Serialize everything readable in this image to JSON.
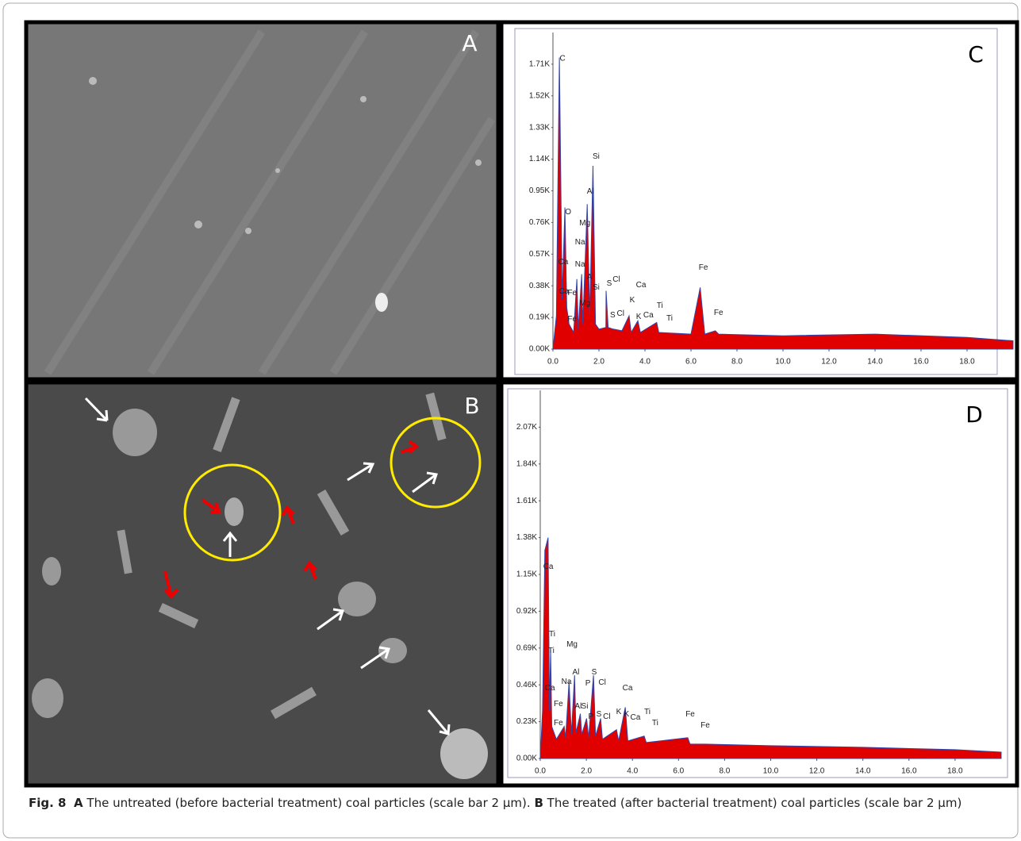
{
  "panels": {
    "a": "A",
    "b": "B"
  },
  "charts": [
    {
      "type": "area",
      "panel_label": "C",
      "color": "#e00000",
      "xlim": [
        0,
        20
      ],
      "ylim": [
        0,
        1900
      ],
      "xticks": [
        {
          "value": 0,
          "label": "0.0"
        },
        {
          "value": 2,
          "label": "2.0"
        },
        {
          "value": 4,
          "label": "4.0"
        },
        {
          "value": 6,
          "label": "6.0"
        },
        {
          "value": 8,
          "label": "8.0"
        },
        {
          "value": 10,
          "label": "10.0"
        },
        {
          "value": 12,
          "label": "12.0"
        },
        {
          "value": 14,
          "label": "14.0"
        },
        {
          "value": 16,
          "label": "16.0"
        },
        {
          "value": 18,
          "label": "18.0"
        }
      ],
      "yticks": [
        {
          "value": 0,
          "label": "0.00K"
        },
        {
          "value": 190,
          "label": "0.19K"
        },
        {
          "value": 380,
          "label": "0.38K"
        },
        {
          "value": 570,
          "label": "0.57K"
        },
        {
          "value": 760,
          "label": "0.76K"
        },
        {
          "value": 950,
          "label": "0.95K"
        },
        {
          "value": 1140,
          "label": "1.14K"
        },
        {
          "value": 1330,
          "label": "1.33K"
        },
        {
          "value": 1520,
          "label": "1.52K"
        },
        {
          "value": 1710,
          "label": "1.71K"
        }
      ],
      "x": [
        0,
        0.15,
        0.28,
        0.4,
        0.52,
        0.6,
        0.7,
        0.9,
        1.04,
        1.1,
        1.25,
        1.3,
        1.49,
        1.6,
        1.74,
        1.85,
        2.0,
        2.3,
        2.31,
        2.4,
        2.62,
        3.0,
        3.31,
        3.4,
        3.69,
        3.8,
        4.51,
        4.6,
        6.0,
        6.4,
        6.6,
        7.06,
        7.2,
        10,
        14,
        18,
        20
      ],
      "values": [
        0,
        200,
        1750,
        300,
        850,
        250,
        150,
        100,
        420,
        120,
        450,
        150,
        870,
        200,
        1100,
        150,
        120,
        130,
        350,
        130,
        120,
        110,
        200,
        100,
        170,
        100,
        160,
        100,
        90,
        370,
        90,
        110,
        90,
        80,
        90,
        70,
        50
      ],
      "peaks": [
        {
          "label": "C",
          "energy": 0.28,
          "counts": 1730
        },
        {
          "label": "O",
          "energy": 0.52,
          "counts": 810
        },
        {
          "label": "Ca",
          "energy": 0.31,
          "counts": 510
        },
        {
          "label": "Na",
          "energy": 1.04,
          "counts": 628
        },
        {
          "label": "Na",
          "energy": 1.04,
          "counts": 495
        },
        {
          "label": "Mg",
          "energy": 1.25,
          "counts": 743
        },
        {
          "label": "Al",
          "energy": 1.49,
          "counts": 933
        },
        {
          "label": "Si",
          "energy": 1.74,
          "counts": 1143
        },
        {
          "label": "Ca",
          "energy": 0.34,
          "counts": 333
        },
        {
          "label": "Fe",
          "energy": 0.7,
          "counts": 324
        },
        {
          "label": "Fe",
          "energy": 0.7,
          "counts": 167
        },
        {
          "label": "Mg",
          "energy": 1.25,
          "counts": 262
        },
        {
          "label": "Al",
          "energy": 1.49,
          "counts": 419
        },
        {
          "label": "Si",
          "energy": 1.74,
          "counts": 357
        },
        {
          "label": "S",
          "energy": 2.31,
          "counts": 381
        },
        {
          "label": "Cl",
          "energy": 2.62,
          "counts": 405
        },
        {
          "label": "Ca",
          "energy": 3.69,
          "counts": 371
        },
        {
          "label": "K",
          "energy": 3.31,
          "counts": 281
        },
        {
          "label": "Ti",
          "energy": 4.51,
          "counts": 248
        },
        {
          "label": "S",
          "energy": 2.46,
          "counts": 190
        },
        {
          "label": "Cl",
          "energy": 2.8,
          "counts": 200
        },
        {
          "label": "K",
          "energy": 3.59,
          "counts": 181
        },
        {
          "label": "Ca",
          "energy": 4.01,
          "counts": 190
        },
        {
          "label": "Ti",
          "energy": 4.93,
          "counts": 171
        },
        {
          "label": "Fe",
          "energy": 6.4,
          "counts": 476
        },
        {
          "label": "Fe",
          "energy": 7.06,
          "counts": 205
        }
      ]
    },
    {
      "type": "area",
      "panel_label": "D",
      "color": "#e00000",
      "xlim": [
        0,
        20
      ],
      "ylim": [
        0,
        2300
      ],
      "xticks": [
        {
          "value": 0,
          "label": "0.0"
        },
        {
          "value": 2,
          "label": "2.0"
        },
        {
          "value": 4,
          "label": "4.0"
        },
        {
          "value": 6,
          "label": "6.0"
        },
        {
          "value": 8,
          "label": "8.0"
        },
        {
          "value": 10,
          "label": "10.0"
        },
        {
          "value": 12,
          "label": "12.0"
        },
        {
          "value": 14,
          "label": "14.0"
        },
        {
          "value": 16,
          "label": "16.0"
        },
        {
          "value": 18,
          "label": "18.0"
        }
      ],
      "yticks": [
        {
          "value": 0,
          "label": "0.00K"
        },
        {
          "value": 230,
          "label": "0.23K"
        },
        {
          "value": 460,
          "label": "0.46K"
        },
        {
          "value": 690,
          "label": "0.69K"
        },
        {
          "value": 920,
          "label": "0.92K"
        },
        {
          "value": 1150,
          "label": "1.15K"
        },
        {
          "value": 1380,
          "label": "1.38K"
        },
        {
          "value": 1610,
          "label": "1.61K"
        },
        {
          "value": 1840,
          "label": "1.84K"
        },
        {
          "value": 2070,
          "label": "2.07K"
        }
      ],
      "x": [
        0,
        0.1,
        0.2,
        0.34,
        0.4,
        0.45,
        0.5,
        0.7,
        1.04,
        1.1,
        1.25,
        1.35,
        1.49,
        1.55,
        1.74,
        1.8,
        2.01,
        2.1,
        2.31,
        2.4,
        2.62,
        2.7,
        3.31,
        3.4,
        3.69,
        3.8,
        4.51,
        4.6,
        6.4,
        6.5,
        7.06,
        10,
        14,
        18,
        20
      ],
      "values": [
        0,
        300,
        1300,
        1380,
        300,
        680,
        200,
        120,
        200,
        130,
        480,
        150,
        520,
        160,
        280,
        150,
        250,
        130,
        520,
        140,
        250,
        120,
        180,
        110,
        320,
        110,
        140,
        100,
        130,
        90,
        90,
        80,
        70,
        55,
        40
      ],
      "peaks": [
        {
          "label": "Ca",
          "energy": 0.21,
          "counts": 1185
        },
        {
          "label": "Ti",
          "energy": 0.38,
          "counts": 763
        },
        {
          "label": "Ti",
          "energy": 0.34,
          "counts": 659
        },
        {
          "label": "Ca",
          "energy": 0.28,
          "counts": 426
        },
        {
          "label": "Fe",
          "energy": 0.65,
          "counts": 327
        },
        {
          "label": "Fe",
          "energy": 0.65,
          "counts": 208
        },
        {
          "label": "Na",
          "energy": 1.0,
          "counts": 466
        },
        {
          "label": "Mg",
          "energy": 1.24,
          "counts": 699
        },
        {
          "label": "Al",
          "energy": 1.41,
          "counts": 525
        },
        {
          "label": "P",
          "energy": 1.93,
          "counts": 456
        },
        {
          "label": "S",
          "energy": 2.2,
          "counts": 525
        },
        {
          "label": "Cl",
          "energy": 2.55,
          "counts": 461
        },
        {
          "label": "Al",
          "energy": 1.51,
          "counts": 312
        },
        {
          "label": "Si",
          "energy": 1.79,
          "counts": 312
        },
        {
          "label": "P",
          "energy": 2.06,
          "counts": 248
        },
        {
          "label": "S",
          "energy": 2.41,
          "counts": 263
        },
        {
          "label": "Cl",
          "energy": 2.75,
          "counts": 248
        },
        {
          "label": "Ca",
          "energy": 3.65,
          "counts": 426
        },
        {
          "label": "K",
          "energy": 3.27,
          "counts": 278
        },
        {
          "label": "K",
          "energy": 3.61,
          "counts": 263
        },
        {
          "label": "Ca",
          "energy": 3.99,
          "counts": 243
        },
        {
          "label": "Ti",
          "energy": 4.51,
          "counts": 278
        },
        {
          "label": "Ti",
          "energy": 4.85,
          "counts": 208
        },
        {
          "label": "Fe",
          "energy": 6.37,
          "counts": 263
        },
        {
          "label": "Fe",
          "energy": 7.02,
          "counts": 193
        }
      ]
    }
  ],
  "caption": {
    "fig": "Fig. 8",
    "a": "A",
    "a_text": "The untreated (before bacterial treatment) coal particles (scale bar 2 μm).",
    "b": "B",
    "b_text": "The treated (after bacterial treatment) coal particles (scale bar 2 μm)"
  }
}
